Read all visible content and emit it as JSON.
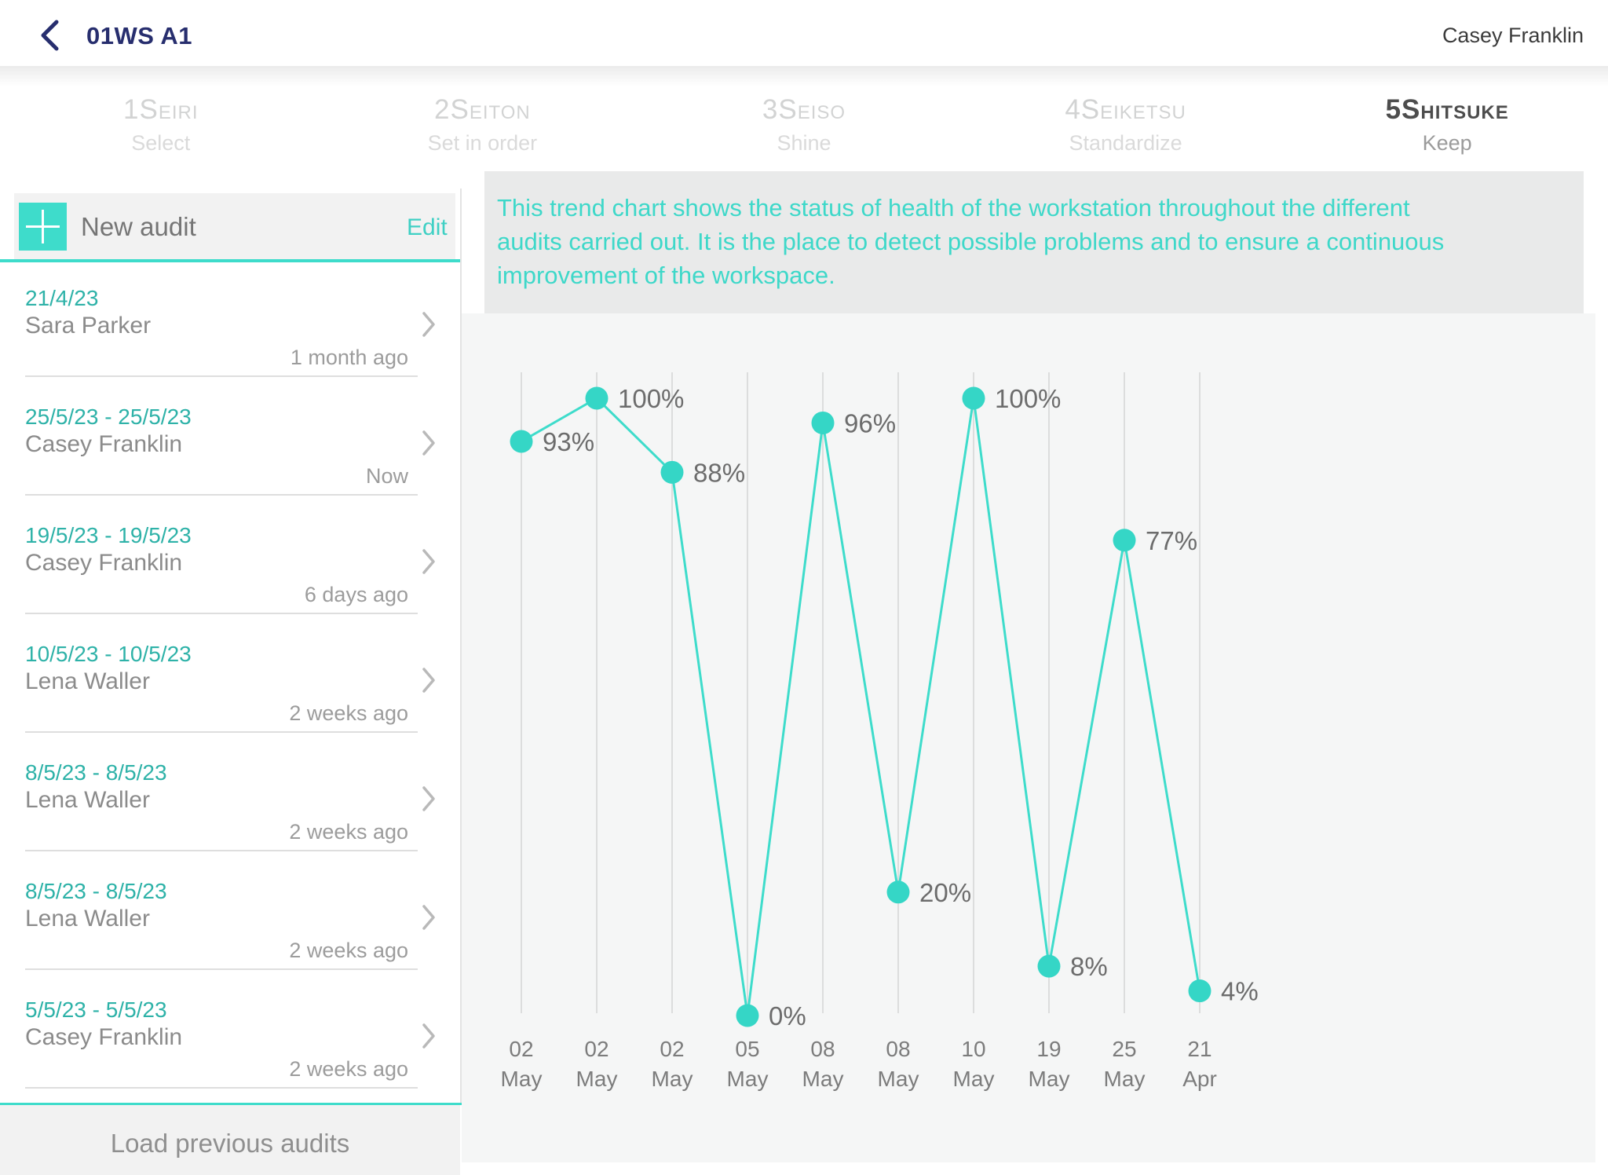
{
  "header": {
    "back_icon": "chevron-left",
    "title": "01WS A1",
    "user": "Casey Franklin"
  },
  "tabs": [
    {
      "big": "1S",
      "small": "EIRI",
      "sub": "Select",
      "active": false
    },
    {
      "big": "2S",
      "small": "EITON",
      "sub": "Set in order",
      "active": false
    },
    {
      "big": "3S",
      "small": "EISO",
      "sub": "Shine",
      "active": false
    },
    {
      "big": "4S",
      "small": "EIKETSU",
      "sub": "Standardize",
      "active": false
    },
    {
      "big": "5S",
      "small": "HITSUKE",
      "sub": "Keep",
      "active": true
    }
  ],
  "sidebar": {
    "new_audit_label": "New audit",
    "edit_label": "Edit",
    "audits": [
      {
        "date": "21/4/23",
        "name": "Sara Parker",
        "ago": "1 month ago"
      },
      {
        "date": "25/5/23 - 25/5/23",
        "name": "Casey Franklin",
        "ago": "Now"
      },
      {
        "date": "19/5/23 - 19/5/23",
        "name": "Casey Franklin",
        "ago": "6 days ago"
      },
      {
        "date": "10/5/23 - 10/5/23",
        "name": "Lena Waller",
        "ago": "2 weeks ago"
      },
      {
        "date": "8/5/23 - 8/5/23",
        "name": "Lena Waller",
        "ago": "2 weeks ago"
      },
      {
        "date": "8/5/23 - 8/5/23",
        "name": "Lena Waller",
        "ago": "2 weeks ago"
      },
      {
        "date": "5/5/23 - 5/5/23",
        "name": "Casey Franklin",
        "ago": "2 weeks ago"
      }
    ],
    "load_previous_label": "Load previous audits"
  },
  "description": {
    "lines": [
      "This trend chart shows the status of health of the workstation throughout the different",
      "audits carried out. It is the place to detect possible problems and to ensure a continuous",
      "improvement of the workspace."
    ]
  },
  "chart_data": {
    "type": "line",
    "title": "",
    "categories": [
      [
        "02",
        "May"
      ],
      [
        "02",
        "May"
      ],
      [
        "02",
        "May"
      ],
      [
        "05",
        "May"
      ],
      [
        "08",
        "May"
      ],
      [
        "08",
        "May"
      ],
      [
        "10",
        "May"
      ],
      [
        "19",
        "May"
      ],
      [
        "25",
        "May"
      ],
      [
        "21",
        "Apr"
      ]
    ],
    "values": [
      93,
      100,
      88,
      0,
      96,
      20,
      100,
      8,
      77,
      4
    ],
    "point_labels": [
      "93%",
      "100%",
      "88%",
      "0%",
      "96%",
      "20%",
      "100%",
      "8%",
      "77%",
      "4%"
    ],
    "ylim": [
      0,
      100
    ],
    "grid": "vertical-only",
    "legend": "none",
    "line_color": "#3edccb",
    "point_color": "#35d6c6",
    "grid_color": "#dcdddd",
    "label_color": "#6c6c6c",
    "axis_label_color": "#7c7c7c"
  },
  "colors": {
    "accent_teal": "#3edccb",
    "navy": "#272e6e",
    "date_teal": "#2eb2a8",
    "description_teal": "#3ed8c9",
    "panel_gray": "#f5f6f6",
    "box_gray": "#e9eaea"
  }
}
